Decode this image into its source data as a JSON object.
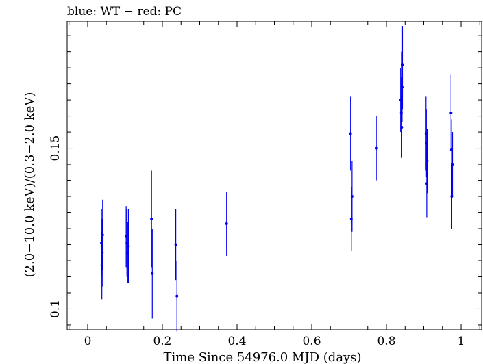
{
  "chart_data": {
    "type": "scatter",
    "title": "blue: WT − red: PC",
    "xlabel": "Time Since 54976.0 MJD (days)",
    "ylabel": "(2.0−10.0 keV)/(0.3−2.0 keV)",
    "xlim": [
      -0.055,
      1.055
    ],
    "ylim": [
      0.0935,
      0.1895
    ],
    "x_ticks": [
      0,
      0.2,
      0.4,
      0.6,
      0.8,
      1
    ],
    "x_tick_labels": [
      "0",
      "0.2",
      "0.4",
      "0.6",
      "0.8",
      "1"
    ],
    "y_ticks": [
      0.1,
      0.15
    ],
    "y_tick_labels": [
      "0.1",
      "0.15"
    ],
    "grid": false,
    "series": [
      {
        "color": "#0000ee",
        "points": [
          {
            "x": 0.037,
            "y": 0.1205,
            "ylo": 0.11,
            "yhi": 0.131
          },
          {
            "x": 0.038,
            "y": 0.1135,
            "ylo": 0.103,
            "yhi": 0.124
          },
          {
            "x": 0.039,
            "y": 0.1175,
            "ylo": 0.107,
            "yhi": 0.128
          },
          {
            "x": 0.04,
            "y": 0.123,
            "ylo": 0.112,
            "yhi": 0.134
          },
          {
            "x": 0.103,
            "y": 0.1225,
            "ylo": 0.113,
            "yhi": 0.132
          },
          {
            "x": 0.105,
            "y": 0.1205,
            "ylo": 0.11,
            "yhi": 0.131
          },
          {
            "x": 0.107,
            "y": 0.1175,
            "ylo": 0.108,
            "yhi": 0.127
          },
          {
            "x": 0.109,
            "y": 0.1195,
            "ylo": 0.108,
            "yhi": 0.131
          },
          {
            "x": 0.171,
            "y": 0.128,
            "ylo": 0.113,
            "yhi": 0.143
          },
          {
            "x": 0.173,
            "y": 0.111,
            "ylo": 0.097,
            "yhi": 0.125
          },
          {
            "x": 0.236,
            "y": 0.12,
            "ylo": 0.109,
            "yhi": 0.131
          },
          {
            "x": 0.239,
            "y": 0.104,
            "ylo": 0.093,
            "yhi": 0.115
          },
          {
            "x": 0.372,
            "y": 0.1265,
            "ylo": 0.1165,
            "yhi": 0.1365
          },
          {
            "x": 0.704,
            "y": 0.1545,
            "ylo": 0.143,
            "yhi": 0.166
          },
          {
            "x": 0.706,
            "y": 0.128,
            "ylo": 0.118,
            "yhi": 0.138
          },
          {
            "x": 0.708,
            "y": 0.135,
            "ylo": 0.124,
            "yhi": 0.146
          },
          {
            "x": 0.774,
            "y": 0.15,
            "ylo": 0.14,
            "yhi": 0.16
          },
          {
            "x": 0.838,
            "y": 0.165,
            "ylo": 0.155,
            "yhi": 0.175
          },
          {
            "x": 0.84,
            "y": 0.161,
            "ylo": 0.15,
            "yhi": 0.172
          },
          {
            "x": 0.841,
            "y": 0.1565,
            "ylo": 0.147,
            "yhi": 0.166
          },
          {
            "x": 0.842,
            "y": 0.169,
            "ylo": 0.158,
            "yhi": 0.18
          },
          {
            "x": 0.843,
            "y": 0.176,
            "ylo": 0.162,
            "yhi": 0.188
          },
          {
            "x": 0.906,
            "y": 0.1545,
            "ylo": 0.143,
            "yhi": 0.166
          },
          {
            "x": 0.907,
            "y": 0.1515,
            "ylo": 0.141,
            "yhi": 0.162
          },
          {
            "x": 0.908,
            "y": 0.139,
            "ylo": 0.1285,
            "yhi": 0.15
          },
          {
            "x": 0.909,
            "y": 0.146,
            "ylo": 0.136,
            "yhi": 0.156
          },
          {
            "x": 0.973,
            "y": 0.161,
            "ylo": 0.15,
            "yhi": 0.173
          },
          {
            "x": 0.974,
            "y": 0.1495,
            "ylo": 0.14,
            "yhi": 0.159
          },
          {
            "x": 0.975,
            "y": 0.135,
            "ylo": 0.125,
            "yhi": 0.145
          },
          {
            "x": 0.977,
            "y": 0.145,
            "ylo": 0.135,
            "yhi": 0.155
          }
        ]
      }
    ]
  }
}
